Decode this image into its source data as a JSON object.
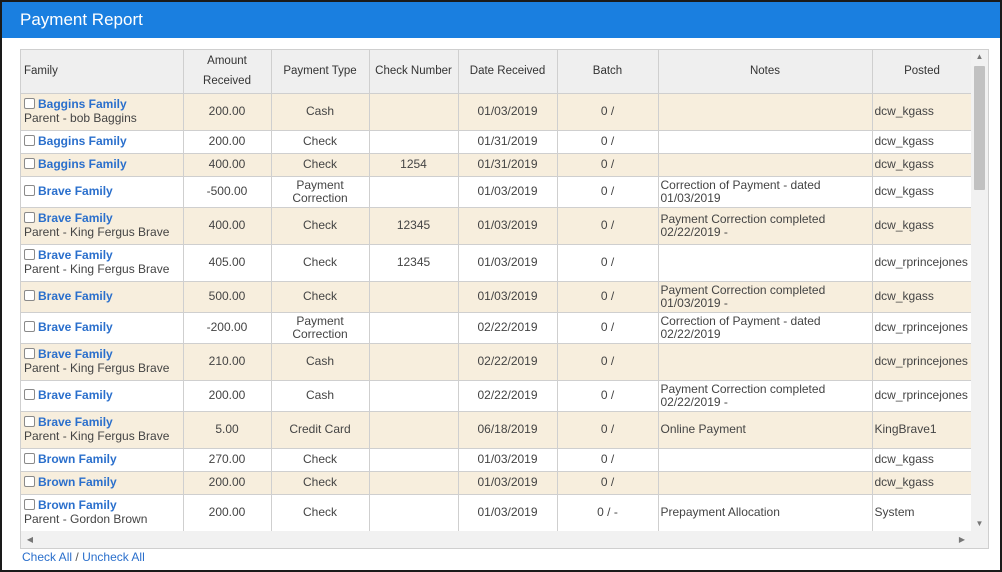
{
  "title": "Payment Report",
  "columns": [
    "Family",
    "Amount Received",
    "Payment Type",
    "Check Number",
    "Date Received",
    "Batch",
    "Notes",
    "Posted"
  ],
  "rows": [
    {
      "family": "Baggins Family",
      "parent": "Parent - bob Baggins",
      "amount": "200.00",
      "type": "Cash",
      "check": "",
      "date": "01/03/2019",
      "batch": "0 /",
      "notes": "",
      "posted": "dcw_kgass"
    },
    {
      "family": "Baggins Family",
      "parent": "",
      "amount": "200.00",
      "type": "Check",
      "check": "",
      "date": "01/31/2019",
      "batch": "0 /",
      "notes": "",
      "posted": "dcw_kgass"
    },
    {
      "family": "Baggins Family",
      "parent": "",
      "amount": "400.00",
      "type": "Check",
      "check": "1254",
      "date": "01/31/2019",
      "batch": "0 /",
      "notes": "",
      "posted": "dcw_kgass"
    },
    {
      "family": "Brave Family",
      "parent": "",
      "amount": "-500.00",
      "type": "Payment Correction",
      "check": "",
      "date": "01/03/2019",
      "batch": "0 /",
      "notes": "Correction of Payment - dated 01/03/2019",
      "posted": "dcw_kgass"
    },
    {
      "family": "Brave Family",
      "parent": "Parent - King Fergus Brave",
      "amount": "400.00",
      "type": "Check",
      "check": "12345",
      "date": "01/03/2019",
      "batch": "0 /",
      "notes": "Payment Correction completed 02/22/2019 -",
      "posted": "dcw_kgass"
    },
    {
      "family": "Brave Family",
      "parent": "Parent - King Fergus Brave",
      "amount": "405.00",
      "type": "Check",
      "check": "12345",
      "date": "01/03/2019",
      "batch": "0 /",
      "notes": "",
      "posted": "dcw_rprincejones"
    },
    {
      "family": "Brave Family",
      "parent": "",
      "amount": "500.00",
      "type": "Check",
      "check": "",
      "date": "01/03/2019",
      "batch": "0 /",
      "notes": "Payment Correction completed 01/03/2019 -",
      "posted": "dcw_kgass"
    },
    {
      "family": "Brave Family",
      "parent": "",
      "amount": "-200.00",
      "type": "Payment Correction",
      "check": "",
      "date": "02/22/2019",
      "batch": "0 /",
      "notes": "Correction of Payment - dated 02/22/2019",
      "posted": "dcw_rprincejones"
    },
    {
      "family": "Brave Family",
      "parent": "Parent - King Fergus Brave",
      "amount": "210.00",
      "type": "Cash",
      "check": "",
      "date": "02/22/2019",
      "batch": "0 /",
      "notes": "",
      "posted": "dcw_rprincejones"
    },
    {
      "family": "Brave Family",
      "parent": "",
      "amount": "200.00",
      "type": "Cash",
      "check": "",
      "date": "02/22/2019",
      "batch": "0 /",
      "notes": "Payment Correction completed 02/22/2019 -",
      "posted": "dcw_rprincejones"
    },
    {
      "family": "Brave Family",
      "parent": "Parent - King Fergus Brave",
      "amount": "5.00",
      "type": "Credit Card",
      "check": "",
      "date": "06/18/2019",
      "batch": "0 /",
      "notes": "Online Payment",
      "posted": "KingBrave1"
    },
    {
      "family": "Brown Family",
      "parent": "",
      "amount": "270.00",
      "type": "Check",
      "check": "",
      "date": "01/03/2019",
      "batch": "0 /",
      "notes": "",
      "posted": "dcw_kgass"
    },
    {
      "family": "Brown Family",
      "parent": "",
      "amount": "200.00",
      "type": "Check",
      "check": "",
      "date": "01/03/2019",
      "batch": "0 /",
      "notes": "",
      "posted": "dcw_kgass"
    },
    {
      "family": "Brown Family",
      "parent": "Parent - Gordon Brown",
      "amount": "200.00",
      "type": "Check",
      "check": "",
      "date": "01/03/2019",
      "batch": "0 / -",
      "notes": "Prepayment Allocation",
      "posted": "System"
    }
  ],
  "footer": {
    "check_all": "Check All",
    "separator": "/",
    "uncheck_all": "Uncheck All"
  },
  "icons": {
    "scroll_up": "arrow-up-icon",
    "scroll_down": "arrow-down-icon",
    "scroll_left": "arrow-left-icon",
    "scroll_right": "arrow-right-icon"
  },
  "colors": {
    "titlebar": "#1a7fe0",
    "alt_row": "#f7eedd",
    "link": "#2a6fcc"
  }
}
